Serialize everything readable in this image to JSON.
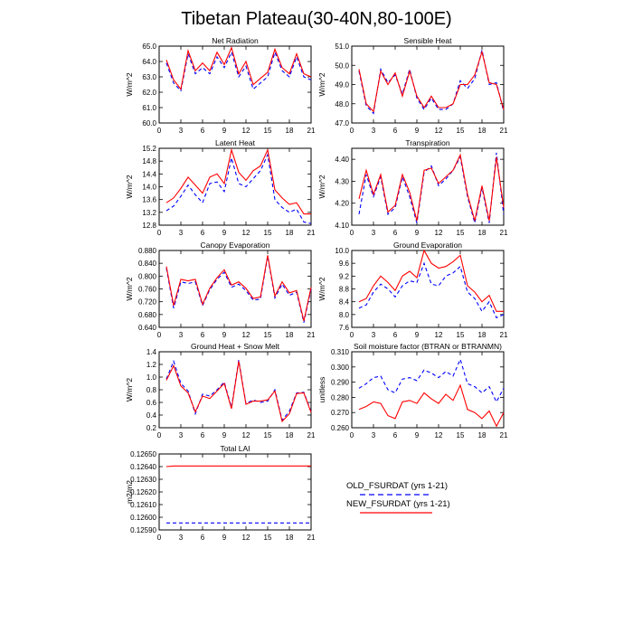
{
  "title": "Tibetan Plateau(30-40N,80-100E)",
  "colors": {
    "old": "#0000ff",
    "new": "#ff0000"
  },
  "legend": {
    "placement": "bottom-right",
    "entries": [
      {
        "label": "OLD_FSURDAT (yrs 1-21)",
        "style": "dashed",
        "color": "#0000ff"
      },
      {
        "label": "NEW_FSURDAT (yrs 1-21)",
        "style": "solid",
        "color": "#ff0000"
      }
    ]
  },
  "chart_data": [
    {
      "type": "line",
      "title": "Net Radiation",
      "ylabel": "W/m^2",
      "xlabel": "",
      "ylim": [
        60.0,
        65.0
      ],
      "yticks": [
        "60.0",
        "61.0",
        "62.0",
        "63.0",
        "64.0",
        "65.0"
      ],
      "xlim": [
        0,
        21
      ],
      "xticks": [
        "0",
        "3",
        "6",
        "9",
        "12",
        "15",
        "18",
        "21"
      ],
      "x": [
        1,
        2,
        3,
        4,
        5,
        6,
        7,
        8,
        9,
        10,
        11,
        12,
        13,
        14,
        15,
        16,
        17,
        18,
        19,
        20,
        21
      ],
      "series": [
        {
          "name": "OLD_FSURDAT (yrs 1-21)",
          "values": [
            63.9,
            62.6,
            62.1,
            64.5,
            63.2,
            63.6,
            63.2,
            64.3,
            63.6,
            64.6,
            63.0,
            63.7,
            62.2,
            62.6,
            63.0,
            64.6,
            63.4,
            63.0,
            64.3,
            63.0,
            62.8
          ]
        },
        {
          "name": "NEW_FSURDAT (yrs 1-21)",
          "values": [
            64.1,
            62.8,
            62.2,
            64.7,
            63.4,
            63.9,
            63.4,
            64.6,
            63.8,
            64.9,
            63.2,
            64.0,
            62.5,
            62.9,
            63.3,
            64.8,
            63.6,
            63.2,
            64.5,
            63.2,
            63.0
          ]
        }
      ]
    },
    {
      "type": "line",
      "title": "Sensible Heat",
      "ylabel": "W/m^2",
      "xlabel": "",
      "ylim": [
        47.0,
        51.0
      ],
      "yticks": [
        "47.0",
        "48.0",
        "49.0",
        "50.0",
        "51.0"
      ],
      "xlim": [
        0,
        21
      ],
      "xticks": [
        "0",
        "3",
        "6",
        "9",
        "12",
        "15",
        "18",
        "21"
      ],
      "x": [
        1,
        2,
        3,
        4,
        5,
        6,
        7,
        8,
        9,
        10,
        11,
        12,
        13,
        14,
        15,
        16,
        17,
        18,
        19,
        20,
        21
      ],
      "series": [
        {
          "name": "OLD_FSURDAT (yrs 1-21)",
          "values": [
            49.7,
            47.9,
            47.5,
            49.8,
            49.1,
            49.5,
            48.5,
            49.8,
            48.3,
            47.7,
            48.3,
            47.7,
            47.7,
            48.0,
            49.2,
            48.8,
            49.3,
            50.8,
            49.0,
            49.1,
            47.6
          ]
        },
        {
          "name": "NEW_FSURDAT (yrs 1-21)",
          "values": [
            49.8,
            48.0,
            47.6,
            49.7,
            49.0,
            49.6,
            48.4,
            49.7,
            48.4,
            47.8,
            48.4,
            47.8,
            47.8,
            48.0,
            49.0,
            49.0,
            49.5,
            50.7,
            49.1,
            49.0,
            47.7
          ]
        }
      ]
    },
    {
      "type": "line",
      "title": "Latent Heat",
      "ylabel": "W/m^2",
      "xlabel": "",
      "ylim": [
        12.8,
        15.2
      ],
      "yticks": [
        "12.8",
        "13.2",
        "13.6",
        "14.0",
        "14.4",
        "14.8",
        "15.2"
      ],
      "xlim": [
        0,
        21
      ],
      "xticks": [
        "0",
        "3",
        "6",
        "9",
        "12",
        "15",
        "18",
        "21"
      ],
      "x": [
        1,
        2,
        3,
        4,
        5,
        6,
        7,
        8,
        9,
        10,
        11,
        12,
        13,
        14,
        15,
        16,
        17,
        18,
        19,
        20,
        21
      ],
      "series": [
        {
          "name": "OLD_FSURDAT (yrs 1-21)",
          "values": [
            13.25,
            13.4,
            13.7,
            14.05,
            13.75,
            13.5,
            14.1,
            14.15,
            13.85,
            14.9,
            14.1,
            14.0,
            14.25,
            14.5,
            15.0,
            13.6,
            13.35,
            13.2,
            13.3,
            12.9,
            12.85
          ]
        },
        {
          "name": "NEW_FSURDAT (yrs 1-21)",
          "values": [
            13.5,
            13.65,
            13.95,
            14.3,
            14.05,
            13.8,
            14.3,
            14.4,
            14.1,
            15.15,
            14.45,
            14.2,
            14.5,
            14.65,
            15.15,
            13.9,
            13.65,
            13.45,
            13.5,
            13.15,
            13.15
          ]
        }
      ]
    },
    {
      "type": "line",
      "title": "Transpiration",
      "ylabel": "W/m^2",
      "xlabel": "",
      "ylim": [
        4.1,
        4.45
      ],
      "yticks": [
        "4.10",
        "4.20",
        "4.30",
        "4.40"
      ],
      "xlim": [
        0,
        21
      ],
      "xticks": [
        "0",
        "3",
        "6",
        "9",
        "12",
        "15",
        "18",
        "21"
      ],
      "x": [
        1,
        2,
        3,
        4,
        5,
        6,
        7,
        8,
        9,
        10,
        11,
        12,
        13,
        14,
        15,
        16,
        17,
        18,
        19,
        20,
        21
      ],
      "series": [
        {
          "name": "OLD_FSURDAT (yrs 1-21)",
          "values": [
            4.15,
            4.33,
            4.23,
            4.32,
            4.15,
            4.18,
            4.32,
            4.23,
            4.11,
            4.34,
            4.37,
            4.28,
            4.31,
            4.35,
            4.41,
            4.23,
            4.11,
            4.27,
            4.11,
            4.43,
            4.15
          ]
        },
        {
          "name": "NEW_FSURDAT (yrs 1-21)",
          "values": [
            4.22,
            4.35,
            4.24,
            4.33,
            4.16,
            4.19,
            4.33,
            4.25,
            4.12,
            4.35,
            4.36,
            4.29,
            4.32,
            4.35,
            4.42,
            4.24,
            4.12,
            4.28,
            4.12,
            4.41,
            4.18
          ]
        }
      ]
    },
    {
      "type": "line",
      "title": "Canopy Evaporation",
      "ylabel": "W/m^2",
      "xlabel": "",
      "ylim": [
        0.64,
        0.88
      ],
      "yticks": [
        "0.640",
        "0.680",
        "0.720",
        "0.760",
        "0.800",
        "0.840",
        "0.880"
      ],
      "xlim": [
        0,
        21
      ],
      "xticks": [
        "0",
        "3",
        "6",
        "9",
        "12",
        "15",
        "18",
        "21"
      ],
      "x": [
        1,
        2,
        3,
        4,
        5,
        6,
        7,
        8,
        9,
        10,
        11,
        12,
        13,
        14,
        15,
        16,
        17,
        18,
        19,
        20,
        21
      ],
      "series": [
        {
          "name": "OLD_FSURDAT (yrs 1-21)",
          "values": [
            0.825,
            0.7,
            0.782,
            0.777,
            0.782,
            0.708,
            0.758,
            0.79,
            0.812,
            0.765,
            0.775,
            0.755,
            0.725,
            0.728,
            0.862,
            0.732,
            0.775,
            0.74,
            0.75,
            0.655,
            0.76
          ]
        },
        {
          "name": "NEW_FSURDAT (yrs 1-21)",
          "values": [
            0.83,
            0.708,
            0.79,
            0.785,
            0.79,
            0.712,
            0.762,
            0.795,
            0.82,
            0.772,
            0.782,
            0.762,
            0.73,
            0.735,
            0.865,
            0.738,
            0.782,
            0.748,
            0.755,
            0.66,
            0.765
          ]
        }
      ]
    },
    {
      "type": "line",
      "title": "Ground Evaporation",
      "ylabel": "W/m^2",
      "xlabel": "",
      "ylim": [
        7.6,
        10.0
      ],
      "yticks": [
        "7.6",
        "8.0",
        "8.4",
        "8.8",
        "9.2",
        "9.6",
        "10.0"
      ],
      "xlim": [
        0,
        21
      ],
      "xticks": [
        "0",
        "3",
        "6",
        "9",
        "12",
        "15",
        "18",
        "21"
      ],
      "x": [
        1,
        2,
        3,
        4,
        5,
        6,
        7,
        8,
        9,
        10,
        11,
        12,
        13,
        14,
        15,
        16,
        17,
        18,
        19,
        20,
        21
      ],
      "series": [
        {
          "name": "OLD_FSURDAT (yrs 1-21)",
          "values": [
            8.2,
            8.3,
            8.7,
            8.95,
            8.8,
            8.55,
            8.9,
            9.05,
            9.0,
            9.6,
            8.95,
            8.9,
            9.2,
            9.3,
            9.5,
            8.7,
            8.5,
            8.1,
            8.4,
            7.9,
            8.0
          ]
        },
        {
          "name": "NEW_FSURDAT (yrs 1-21)",
          "values": [
            8.4,
            8.5,
            8.9,
            9.2,
            9.0,
            8.75,
            9.2,
            9.35,
            9.15,
            10.0,
            9.6,
            9.45,
            9.5,
            9.65,
            9.85,
            8.9,
            8.7,
            8.4,
            8.6,
            8.1,
            8.1
          ]
        }
      ]
    },
    {
      "type": "line",
      "title": "Ground Heat + Snow Melt",
      "ylabel": "W/m^2",
      "xlabel": "",
      "ylim": [
        0.2,
        1.4
      ],
      "yticks": [
        "0.2",
        "0.4",
        "0.6",
        "0.8",
        "1.0",
        "1.2",
        "1.4"
      ],
      "xlim": [
        0,
        21
      ],
      "xticks": [
        "0",
        "3",
        "6",
        "9",
        "12",
        "15",
        "18",
        "21"
      ],
      "x": [
        1,
        2,
        3,
        4,
        5,
        6,
        7,
        8,
        9,
        10,
        11,
        12,
        13,
        14,
        15,
        16,
        17,
        18,
        19,
        20,
        21
      ],
      "series": [
        {
          "name": "OLD_FSURDAT (yrs 1-21)",
          "values": [
            0.97,
            1.25,
            0.9,
            0.78,
            0.42,
            0.73,
            0.7,
            0.8,
            0.92,
            0.52,
            1.27,
            0.58,
            0.64,
            0.6,
            0.62,
            0.8,
            0.32,
            0.46,
            0.75,
            0.76,
            0.45
          ]
        },
        {
          "name": "NEW_FSURDAT (yrs 1-21)",
          "values": [
            0.95,
            1.18,
            0.86,
            0.75,
            0.45,
            0.7,
            0.66,
            0.78,
            0.9,
            0.5,
            1.25,
            0.57,
            0.62,
            0.62,
            0.64,
            0.78,
            0.3,
            0.42,
            0.74,
            0.75,
            0.44
          ]
        }
      ]
    },
    {
      "type": "line",
      "title": "Soil moisture factor (BTRAN or BTRANMN)",
      "ylabel": "unitless",
      "xlabel": "",
      "ylim": [
        0.26,
        0.31
      ],
      "yticks": [
        "0.260",
        "0.270",
        "0.280",
        "0.290",
        "0.300",
        "0.310"
      ],
      "xlim": [
        0,
        21
      ],
      "xticks": [
        "0",
        "3",
        "6",
        "9",
        "12",
        "15",
        "18",
        "21"
      ],
      "x": [
        1,
        2,
        3,
        4,
        5,
        6,
        7,
        8,
        9,
        10,
        11,
        12,
        13,
        14,
        15,
        16,
        17,
        18,
        19,
        20,
        21
      ],
      "series": [
        {
          "name": "OLD_FSURDAT (yrs 1-21)",
          "values": [
            0.286,
            0.289,
            0.293,
            0.294,
            0.285,
            0.283,
            0.292,
            0.293,
            0.291,
            0.298,
            0.296,
            0.293,
            0.297,
            0.294,
            0.305,
            0.289,
            0.287,
            0.283,
            0.287,
            0.277,
            0.286
          ]
        },
        {
          "name": "NEW_FSURDAT (yrs 1-21)",
          "values": [
            0.272,
            0.274,
            0.277,
            0.276,
            0.268,
            0.266,
            0.277,
            0.278,
            0.276,
            0.283,
            0.279,
            0.276,
            0.282,
            0.278,
            0.288,
            0.272,
            0.27,
            0.266,
            0.271,
            0.261,
            0.27
          ]
        }
      ]
    },
    {
      "type": "line",
      "title": "Total LAI",
      "ylabel": "m2/m2",
      "xlabel": "",
      "ylim": [
        0.1259,
        0.1265
      ],
      "yticks": [
        "0.12590",
        "0.12600",
        "0.12610",
        "0.12620",
        "0.12630",
        "0.12640",
        "0.12650"
      ],
      "xlim": [
        0,
        21
      ],
      "xticks": [
        "0",
        "3",
        "6",
        "9",
        "12",
        "15",
        "18",
        "21"
      ],
      "x": [
        1,
        2,
        3,
        4,
        5,
        6,
        7,
        8,
        9,
        10,
        11,
        12,
        13,
        14,
        15,
        16,
        17,
        18,
        19,
        20,
        21
      ],
      "series": [
        {
          "name": "OLD_FSURDAT (yrs 1-21)",
          "values": [
            0.125955,
            0.125955,
            0.125955,
            0.125955,
            0.125955,
            0.125955,
            0.125955,
            0.125955,
            0.125955,
            0.125955,
            0.125955,
            0.125955,
            0.125955,
            0.125955,
            0.125955,
            0.125955,
            0.125955,
            0.125955,
            0.125955,
            0.125955,
            0.125955
          ]
        },
        {
          "name": "NEW_FSURDAT (yrs 1-21)",
          "values": [
            0.1264,
            0.126405,
            0.126405,
            0.126405,
            0.126405,
            0.126405,
            0.126405,
            0.126405,
            0.126405,
            0.126405,
            0.126405,
            0.126405,
            0.126405,
            0.126405,
            0.126405,
            0.126405,
            0.126405,
            0.126405,
            0.126405,
            0.126405,
            0.126405
          ]
        }
      ]
    }
  ]
}
